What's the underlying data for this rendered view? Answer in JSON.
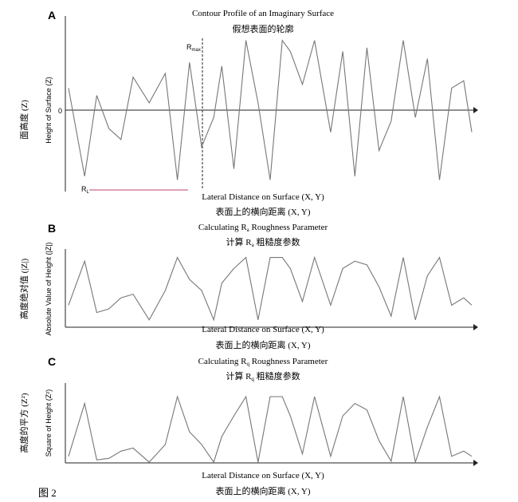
{
  "figure_label": "图 2",
  "panels": {
    "a": {
      "letter": "A",
      "title_en": "Contour Profile of an Imaginary Surface",
      "title_zh": "假想表面的轮廓",
      "y_axis_label": "Height of Surface (Z)",
      "y_axis_label_zh": "面高度 (Z)",
      "zero_label": "0",
      "rmax_label": "R",
      "rmax_sub": "max",
      "rl_label": "R",
      "rl_sub": "L",
      "x_axis_label_en": "Lateral Distance on Surface (X, Y)",
      "x_axis_label_zh": "表面上的横向距离 (X, Y)"
    },
    "b": {
      "letter": "B",
      "title_en_pre": "Calculating R",
      "title_en_sub": "a",
      "title_en_post": " Roughness Parameter",
      "title_zh_pre": "计算 R",
      "title_zh_sub": "a",
      "title_zh_post": " 粗糙度参数",
      "y_axis_label": "Absolute Value of Height (|Z|)",
      "y_axis_label_zh": "高度绝对值 (|Z|)",
      "x_axis_label_en": "Lateral Distance on Surface (X, Y)",
      "x_axis_label_zh": "表面上的横向距离 (X, Y)"
    },
    "c": {
      "letter": "C",
      "title_en_pre": "Calculating R",
      "title_en_sub": "q",
      "title_en_post": " Roughness Parameter",
      "title_zh_pre": "计算 R",
      "title_zh_sub": "q",
      "title_zh_post": " 粗糙度参数",
      "y_axis_label": "Square of Height (Z²)",
      "y_axis_label_zh": "高度的平方 (Z²)",
      "x_axis_label_en": "Lateral Distance on Surface (X, Y)",
      "x_axis_label_zh": "表面上的横向距离 (X, Y)"
    }
  },
  "profile": {
    "description_values_are_relative_heights": true,
    "x": [
      0.0,
      0.04,
      0.07,
      0.1,
      0.13,
      0.16,
      0.2,
      0.24,
      0.27,
      0.3,
      0.33,
      0.36,
      0.38,
      0.41,
      0.44,
      0.47,
      0.5,
      0.53,
      0.55,
      0.58,
      0.61,
      0.65,
      0.68,
      0.71,
      0.74,
      0.77,
      0.8,
      0.83,
      0.86,
      0.89,
      0.92,
      0.95,
      0.98,
      1.0
    ],
    "z": [
      0.3,
      -0.9,
      0.2,
      -0.25,
      -0.4,
      0.45,
      0.1,
      0.5,
      -0.95,
      0.65,
      -0.5,
      -0.1,
      0.6,
      -0.8,
      0.95,
      0.1,
      -0.95,
      0.95,
      0.8,
      0.35,
      0.95,
      -0.3,
      0.8,
      -0.9,
      0.85,
      -0.55,
      -0.15,
      0.95,
      -0.1,
      0.7,
      -0.95,
      0.3,
      0.4,
      -0.3
    ]
  },
  "colors": {
    "profile": "#777777",
    "axis": "#222222",
    "rl_line": "#c0436b",
    "rmax_line": "#222222"
  }
}
